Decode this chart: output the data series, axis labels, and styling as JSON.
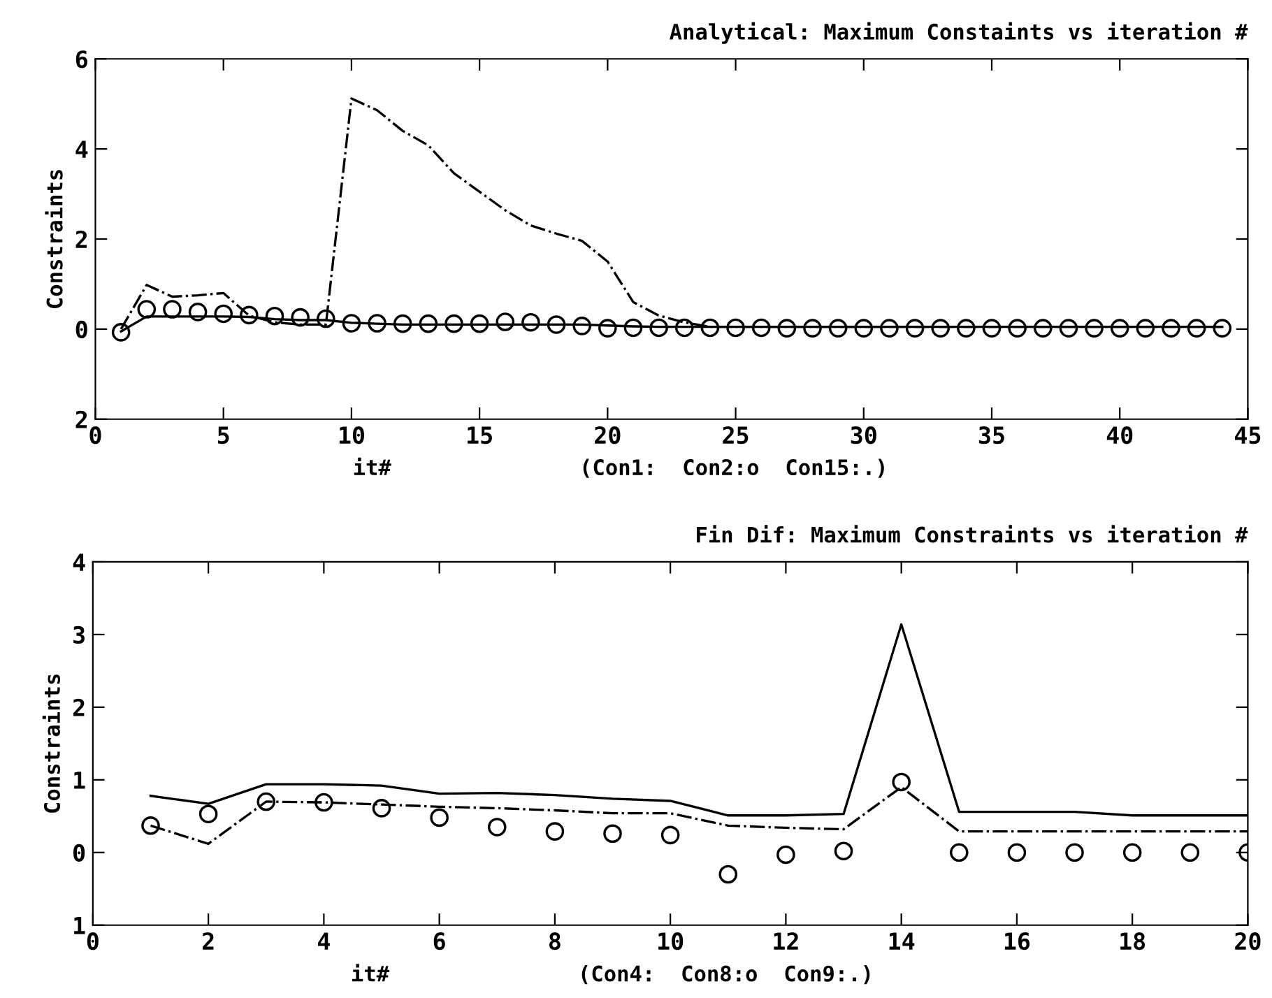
{
  "chart_data": [
    {
      "type": "line",
      "title": "Analytical: Maximum Constaints vs iteration #",
      "xlabel": "it#",
      "ylabel": "Constraints",
      "annotations": [
        "(Con1:  Con2:o  Con15:.)"
      ],
      "x": [
        1,
        2,
        3,
        4,
        5,
        6,
        7,
        8,
        9,
        10,
        11,
        12,
        13,
        14,
        15,
        16,
        17,
        18,
        19,
        20,
        21,
        22,
        23,
        24,
        25,
        26,
        27,
        28,
        29,
        30,
        31,
        32,
        33,
        34,
        35,
        36,
        37,
        38,
        39,
        40,
        41,
        42,
        43,
        44
      ],
      "series": [
        {
          "color": "#000000",
          "line_style": "solid",
          "values": [
            -0.05,
            0.28,
            0.28,
            0.28,
            0.28,
            0.27,
            0.22,
            0.2,
            0.2,
            0.14,
            0.12,
            0.1,
            0.1,
            0.1,
            0.1,
            0.1,
            0.1,
            0.1,
            0.1,
            0.08,
            0.06,
            0.05,
            0.05,
            0.05,
            0.05,
            0.05,
            0.05,
            0.05,
            0.05,
            0.05,
            0.05,
            0.05,
            0.05,
            0.05,
            0.05,
            0.05,
            0.05,
            0.05,
            0.05,
            0.05,
            0.05,
            0.05,
            0.05,
            0.05
          ]
        },
        {
          "type": "scatter",
          "color": "#000000",
          "marker": "circle",
          "values": [
            -0.07,
            0.44,
            0.44,
            0.38,
            0.34,
            0.31,
            0.29,
            0.26,
            0.23,
            0.13,
            0.13,
            0.12,
            0.12,
            0.12,
            0.12,
            0.16,
            0.15,
            0.1,
            0.07,
            0.02,
            0.03,
            0.03,
            0.03,
            0.03,
            0.03,
            0.03,
            0.02,
            0.02,
            0.02,
            0.02,
            0.02,
            0.02,
            0.02,
            0.02,
            0.02,
            0.02,
            0.02,
            0.02,
            0.02,
            0.02,
            0.02,
            0.02,
            0.02,
            0.02
          ]
        },
        {
          "color": "#000000",
          "line_style": "dashdot",
          "values": [
            0.0,
            0.98,
            0.72,
            0.75,
            0.8,
            0.3,
            0.15,
            0.1,
            0.1,
            5.12,
            4.86,
            4.4,
            4.08,
            3.46,
            3.05,
            2.64,
            2.3,
            2.12,
            1.96,
            1.5,
            0.6,
            0.3,
            0.15,
            0.05,
            0.05,
            0.05,
            0.05,
            0.05,
            0.05,
            0.05,
            0.05,
            0.05,
            0.05,
            0.05,
            0.05,
            0.05,
            0.05,
            0.05,
            0.05,
            0.05,
            0.05,
            0.05,
            0.05,
            0.05
          ]
        }
      ],
      "xlim": [
        0,
        45
      ],
      "xticks": [
        0,
        5,
        10,
        15,
        20,
        25,
        30,
        35,
        40,
        45
      ],
      "ylim": [
        -2,
        6
      ],
      "yticks": [
        {
          "value": -2,
          "label": "2"
        },
        0,
        2,
        4,
        6
      ]
    },
    {
      "type": "line",
      "title": "Fin Dif: Maximum Constraints vs iteration #",
      "xlabel": "it#",
      "ylabel": "Constraints",
      "annotations": [
        "(Con4:  Con8:o  Con9:.)"
      ],
      "x": [
        1,
        2,
        3,
        4,
        5,
        6,
        7,
        8,
        9,
        10,
        11,
        12,
        13,
        14,
        15,
        16,
        17,
        18,
        19,
        20
      ],
      "series": [
        {
          "color": "#000000",
          "line_style": "solid",
          "values": [
            0.78,
            0.67,
            0.94,
            0.94,
            0.92,
            0.81,
            0.82,
            0.79,
            0.74,
            0.71,
            0.51,
            0.51,
            0.53,
            3.14,
            0.56,
            0.56,
            0.56,
            0.51,
            0.51,
            0.51
          ]
        },
        {
          "type": "scatter",
          "color": "#000000",
          "marker": "circle",
          "values": [
            0.37,
            0.53,
            0.7,
            0.69,
            0.61,
            0.48,
            0.35,
            0.29,
            0.26,
            0.24,
            -0.3,
            -0.03,
            0.02,
            0.97,
            0.0,
            0.0,
            0.0,
            0.0,
            0.0,
            0.0
          ]
        },
        {
          "color": "#000000",
          "line_style": "dashdot",
          "values": [
            0.37,
            0.12,
            0.7,
            0.69,
            0.66,
            0.63,
            0.61,
            0.58,
            0.54,
            0.54,
            0.37,
            0.34,
            0.32,
            0.9,
            0.29,
            0.29,
            0.29,
            0.29,
            0.29,
            0.29
          ]
        }
      ],
      "xlim": [
        0,
        20
      ],
      "xticks": [
        0,
        2,
        4,
        6,
        8,
        10,
        12,
        14,
        16,
        18,
        20
      ],
      "ylim": [
        -1,
        4
      ],
      "yticks": [
        {
          "value": -1,
          "label": "1"
        },
        0,
        1,
        2,
        3,
        4
      ]
    }
  ]
}
